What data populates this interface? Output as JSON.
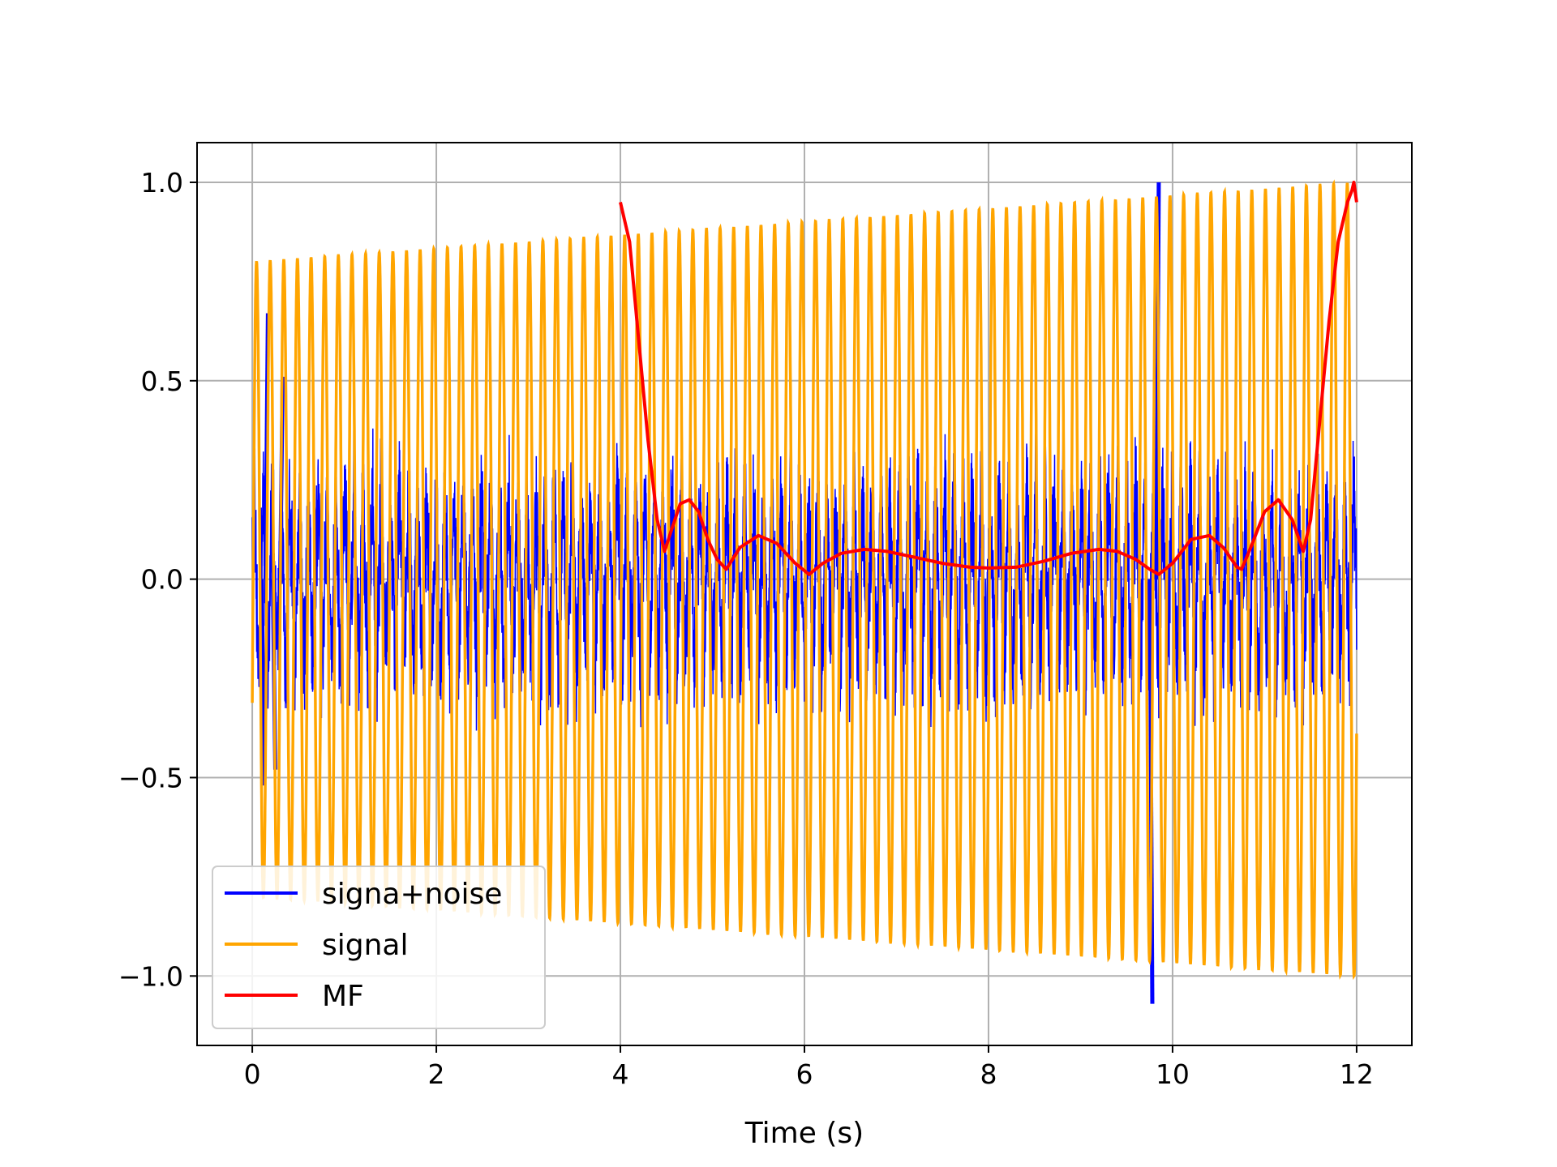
{
  "chart_data": {
    "type": "line",
    "title": "",
    "xlabel": "Time (s)",
    "ylabel": "",
    "xlim": [
      -0.6,
      12.6
    ],
    "ylim": [
      -1.175,
      1.1
    ],
    "xticks": [
      0,
      2,
      4,
      6,
      8,
      10,
      12
    ],
    "xtick_labels": [
      "0",
      "2",
      "4",
      "6",
      "8",
      "10",
      "12"
    ],
    "yticks": [
      -1.0,
      -0.5,
      0.0,
      0.5,
      1.0
    ],
    "ytick_labels": [
      "−1.0",
      "−0.5",
      "0.0",
      "0.5",
      "1.0"
    ],
    "grid": true,
    "legend_position": "lower-left",
    "series": [
      {
        "name": "signa+noise",
        "color": "#0000ff",
        "style": "rapid oscillation, mostly hidden behind signal",
        "t_range": [
          0,
          12
        ],
        "extremes": [
          {
            "t": 0.17,
            "v": 0.67
          },
          {
            "t": 0.13,
            "v": -0.52
          },
          {
            "t": 0.25,
            "v": -0.48
          },
          {
            "t": 0.33,
            "v": 0.51
          },
          {
            "t": 9.85,
            "v": 1.0
          },
          {
            "t": 9.78,
            "v": -1.07
          }
        ]
      },
      {
        "name": "signal",
        "color": "#ffa500",
        "style": "oscillation, amplitude growing",
        "t_range": [
          0,
          12
        ],
        "amplitude_start": 0.8,
        "amplitude_end": 1.0,
        "approx_cycles": 81
      },
      {
        "name": "MF",
        "color": "#ff0000",
        "x": [
          4.0,
          4.1,
          4.2,
          4.3,
          4.4,
          4.48,
          4.55,
          4.65,
          4.75,
          4.85,
          4.95,
          5.05,
          5.15,
          5.3,
          5.5,
          5.7,
          5.9,
          6.05,
          6.2,
          6.4,
          6.65,
          6.9,
          7.2,
          7.5,
          7.8,
          8.0,
          8.3,
          8.6,
          8.9,
          9.2,
          9.4,
          9.6,
          9.75,
          9.85,
          10.0,
          10.2,
          10.4,
          10.55,
          10.7,
          10.75,
          10.85,
          11.0,
          11.15,
          11.3,
          11.42,
          11.5,
          11.6,
          11.7,
          11.8,
          11.9,
          11.95,
          11.97,
          12.0
        ],
        "y": [
          0.95,
          0.85,
          0.6,
          0.35,
          0.15,
          0.07,
          0.12,
          0.19,
          0.2,
          0.17,
          0.1,
          0.05,
          0.025,
          0.08,
          0.11,
          0.09,
          0.04,
          0.012,
          0.04,
          0.065,
          0.075,
          0.07,
          0.055,
          0.04,
          0.03,
          0.028,
          0.03,
          0.045,
          0.065,
          0.075,
          0.07,
          0.05,
          0.025,
          0.012,
          0.04,
          0.1,
          0.11,
          0.08,
          0.03,
          0.025,
          0.08,
          0.17,
          0.2,
          0.15,
          0.07,
          0.15,
          0.4,
          0.65,
          0.85,
          0.95,
          0.98,
          1.0,
          0.95
        ]
      }
    ]
  }
}
